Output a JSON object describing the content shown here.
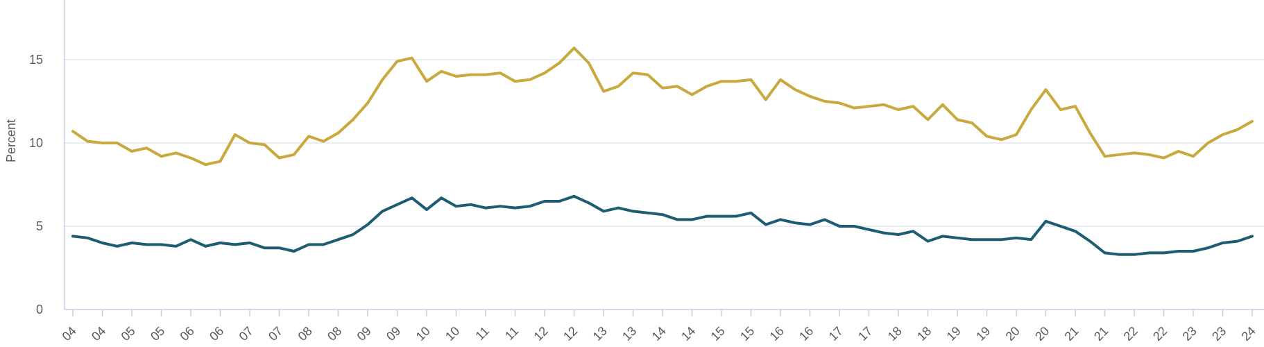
{
  "chart_data": {
    "type": "line",
    "title": "",
    "xlabel": "",
    "ylabel": "Percent",
    "ylim": [
      0,
      19
    ],
    "yticks": [
      0,
      5,
      10,
      15
    ],
    "grid": true,
    "legend": "none",
    "x_tick_labels": [
      "04",
      "04",
      "05",
      "05",
      "06",
      "06",
      "07",
      "07",
      "08",
      "08",
      "09",
      "09",
      "10",
      "10",
      "11",
      "11",
      "12",
      "12",
      "13",
      "13",
      "14",
      "14",
      "15",
      "15",
      "16",
      "16",
      "17",
      "17",
      "18",
      "18",
      "19",
      "19",
      "20",
      "20",
      "21",
      "21",
      "22",
      "22",
      "23",
      "23",
      "24"
    ],
    "series": [
      {
        "color": "#c9a83e",
        "values": [
          10.7,
          10.1,
          10.0,
          10.0,
          9.5,
          9.7,
          9.2,
          9.4,
          9.1,
          8.7,
          8.9,
          10.5,
          10.0,
          9.9,
          9.1,
          9.3,
          10.4,
          10.1,
          10.6,
          11.4,
          12.4,
          13.8,
          14.9,
          15.1,
          13.7,
          14.3,
          14.0,
          14.1,
          14.1,
          14.2,
          13.7,
          13.8,
          14.2,
          14.8,
          15.7,
          14.8,
          13.1,
          13.4,
          14.2,
          14.1,
          13.3,
          13.4,
          12.9,
          13.4,
          13.7,
          13.7,
          13.8,
          12.6,
          13.8,
          13.2,
          12.8,
          12.5,
          12.4,
          12.1,
          12.2,
          12.3,
          12.0,
          12.2,
          11.4,
          12.3,
          11.4,
          11.2,
          10.4,
          10.2,
          10.5,
          12.0,
          13.2,
          12.0,
          12.2,
          10.6,
          9.2,
          9.3,
          9.4,
          9.3,
          9.1,
          9.5,
          9.2,
          10.0,
          10.5,
          10.8,
          11.3
        ]
      },
      {
        "color": "#1d5c72",
        "values": [
          4.4,
          4.3,
          4.0,
          3.8,
          4.0,
          3.9,
          3.9,
          3.8,
          4.2,
          3.8,
          4.0,
          3.9,
          4.0,
          3.7,
          3.7,
          3.5,
          3.9,
          3.9,
          4.2,
          4.5,
          5.1,
          5.9,
          6.3,
          6.7,
          6.0,
          6.7,
          6.2,
          6.3,
          6.1,
          6.2,
          6.1,
          6.2,
          6.5,
          6.5,
          6.8,
          6.4,
          5.9,
          6.1,
          5.9,
          5.8,
          5.7,
          5.4,
          5.4,
          5.6,
          5.6,
          5.6,
          5.8,
          5.1,
          5.4,
          5.2,
          5.1,
          5.4,
          5.0,
          5.0,
          4.8,
          4.6,
          4.5,
          4.7,
          4.1,
          4.4,
          4.3,
          4.2,
          4.2,
          4.2,
          4.3,
          4.2,
          5.3,
          5.0,
          4.7,
          4.1,
          3.4,
          3.3,
          3.3,
          3.4,
          3.4,
          3.5,
          3.5,
          3.7,
          4.0,
          4.1,
          4.4
        ]
      }
    ]
  }
}
